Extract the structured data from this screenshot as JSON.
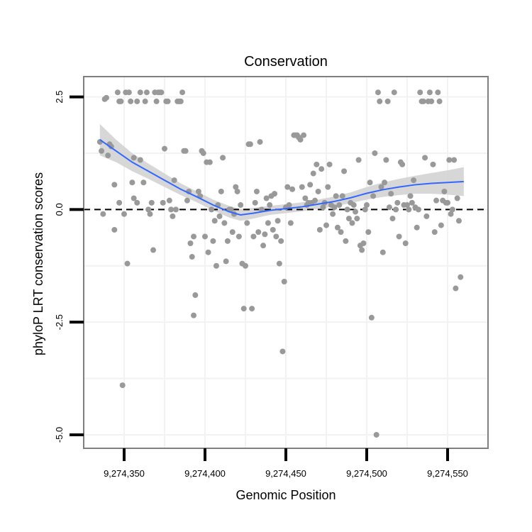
{
  "chart_data": {
    "type": "scatter",
    "title": "Conservation",
    "xlabel": "Genomic Position",
    "ylabel": "phyloP LRT conservation scores",
    "xlim": [
      9274325,
      9274575
    ],
    "ylim": [
      -5.3,
      2.95
    ],
    "x_ticks": [
      9274350,
      9274400,
      9274450,
      9274500,
      9274550
    ],
    "x_tick_labels": [
      "9,274,350",
      "9,274,400",
      "9,274,450",
      "9,274,500",
      "9,274,550"
    ],
    "y_ticks": [
      2.5,
      0.0,
      -2.5,
      -5.0
    ],
    "y_tick_labels": [
      "2.5",
      "0.0",
      "-2.5",
      "-5.0"
    ],
    "reference_line": {
      "y": 0,
      "style": "dashed"
    },
    "colors": {
      "points": "#999999",
      "smooth": "#3366ff",
      "ribbon": "#d3d3d3",
      "grid": "#f2f2f2",
      "border": "#7f7f7f"
    },
    "series": [
      {
        "name": "scores",
        "points": [
          [
            9274335,
            1.5
          ],
          [
            9274336,
            1.3
          ],
          [
            9274337,
            -0.1
          ],
          [
            9274338,
            2.45
          ],
          [
            9274339,
            2.48
          ],
          [
            9274340,
            1.2
          ],
          [
            9274341,
            1.45
          ],
          [
            9274342,
            1.4
          ],
          [
            9274344,
            0.55
          ],
          [
            9274344,
            -0.45
          ],
          [
            9274346,
            2.6
          ],
          [
            9274347,
            2.4
          ],
          [
            9274347,
            0.15
          ],
          [
            9274348,
            2.4
          ],
          [
            9274349,
            -3.9
          ],
          [
            9274350,
            -0.1
          ],
          [
            9274351,
            2.6
          ],
          [
            9274352,
            -1.2
          ],
          [
            9274353,
            2.6
          ],
          [
            9274354,
            2.4
          ],
          [
            9274355,
            0.6
          ],
          [
            9274356,
            1.15
          ],
          [
            9274356,
            0.25
          ],
          [
            9274358,
            2.4
          ],
          [
            9274358,
            0.15
          ],
          [
            9274360,
            1.1
          ],
          [
            9274360,
            2.6
          ],
          [
            9274362,
            0.6
          ],
          [
            9274363,
            2.4
          ],
          [
            9274364,
            2.6
          ],
          [
            9274365,
            0.0
          ],
          [
            9274366,
            -0.1
          ],
          [
            9274367,
            0.15
          ],
          [
            9274368,
            -0.9
          ],
          [
            9274369,
            2.6
          ],
          [
            9274370,
            2.4
          ],
          [
            9274371,
            2.6
          ],
          [
            9274372,
            2.6
          ],
          [
            9274373,
            2.6
          ],
          [
            9274374,
            0.15
          ],
          [
            9274375,
            1.35
          ],
          [
            9274376,
            2.4
          ],
          [
            9274377,
            2.4
          ],
          [
            9274378,
            0.2
          ],
          [
            9274379,
            0.0
          ],
          [
            9274380,
            -0.15
          ],
          [
            9274381,
            0.65
          ],
          [
            9274382,
            0.0
          ],
          [
            9274383,
            2.4
          ],
          [
            9274384,
            2.4
          ],
          [
            9274385,
            2.4
          ],
          [
            9274386,
            2.6
          ],
          [
            9274387,
            1.3
          ],
          [
            9274388,
            1.3
          ],
          [
            9274389,
            0.2
          ],
          [
            9274390,
            0.4
          ],
          [
            9274391,
            -0.75
          ],
          [
            9274392,
            -1.05
          ],
          [
            9274393,
            -0.6
          ],
          [
            9274394,
            -1.9
          ],
          [
            9274393,
            -2.35
          ],
          [
            9274396,
            0.4
          ],
          [
            9274397,
            0.3
          ],
          [
            9274398,
            1.3
          ],
          [
            9274399,
            1.25
          ],
          [
            9274400,
            -0.6
          ],
          [
            9274401,
            1.05
          ],
          [
            9274402,
            -0.95
          ],
          [
            9274403,
            1.05
          ],
          [
            9274404,
            0.0
          ],
          [
            9274405,
            -0.7
          ],
          [
            9274406,
            -0.25
          ],
          [
            9274407,
            -1.25
          ],
          [
            9274408,
            0.1
          ],
          [
            9274409,
            -0.15
          ],
          [
            9274410,
            0.4
          ],
          [
            9274411,
            1.15
          ],
          [
            9274412,
            -0.3
          ],
          [
            9274413,
            -1.15
          ],
          [
            9274414,
            -0.7
          ],
          [
            9274415,
            0.0
          ],
          [
            9274416,
            0.0
          ],
          [
            9274417,
            -0.5
          ],
          [
            9274418,
            -0.1
          ],
          [
            9274419,
            0.5
          ],
          [
            9274420,
            0.4
          ],
          [
            9274421,
            -0.6
          ],
          [
            9274422,
            0.1
          ],
          [
            9274423,
            -1.2
          ],
          [
            9274424,
            -2.2
          ],
          [
            9274425,
            -1.25
          ],
          [
            9274426,
            -0.3
          ],
          [
            9274427,
            1.45
          ],
          [
            9274428,
            1.45
          ],
          [
            9274429,
            -2.2
          ],
          [
            9274430,
            -0.6
          ],
          [
            9274431,
            0.15
          ],
          [
            9274432,
            0.4
          ],
          [
            9274433,
            -0.5
          ],
          [
            9274434,
            1.5
          ],
          [
            9274435,
            0.0
          ],
          [
            9274436,
            -0.8
          ],
          [
            9274437,
            -0.55
          ],
          [
            9274438,
            0.25
          ],
          [
            9274439,
            -0.3
          ],
          [
            9274440,
            0.1
          ],
          [
            9274441,
            0.3
          ],
          [
            9274442,
            -0.45
          ],
          [
            9274443,
            0.35
          ],
          [
            9274444,
            -0.6
          ],
          [
            9274445,
            -0.25
          ],
          [
            9274446,
            -1.2
          ],
          [
            9274447,
            -0.7
          ],
          [
            9274448,
            -3.15
          ],
          [
            9274449,
            -1.6
          ],
          [
            9274450,
            0.05
          ],
          [
            9274451,
            0.5
          ],
          [
            9274452,
            0.1
          ],
          [
            9274453,
            -0.3
          ],
          [
            9274454,
            0.45
          ],
          [
            9274455,
            1.65
          ],
          [
            9274456,
            1.65
          ],
          [
            9274457,
            1.65
          ],
          [
            9274458,
            1.6
          ],
          [
            9274459,
            1.55
          ],
          [
            9274460,
            0.5
          ],
          [
            9274461,
            1.65
          ],
          [
            9274462,
            0.25
          ],
          [
            9274463,
            0.1
          ],
          [
            9274464,
            0.15
          ],
          [
            9274465,
            0.55
          ],
          [
            9274466,
            0.15
          ],
          [
            9274467,
            0.8
          ],
          [
            9274468,
            0.2
          ],
          [
            9274469,
            1.0
          ],
          [
            9274470,
            0.4
          ],
          [
            9274471,
            -0.45
          ],
          [
            9274472,
            0.9
          ],
          [
            9274473,
            0.05
          ],
          [
            9274474,
            0.15
          ],
          [
            9274475,
            -0.35
          ],
          [
            9274476,
            0.5
          ],
          [
            9274477,
            1.0
          ],
          [
            9274478,
            0.1
          ],
          [
            9274479,
            -0.1
          ],
          [
            9274480,
            0.05
          ],
          [
            9274481,
            0.3
          ],
          [
            9274482,
            -0.4
          ],
          [
            9274483,
            0.1
          ],
          [
            9274484,
            -0.5
          ],
          [
            9274485,
            0.3
          ],
          [
            9274486,
            0.85
          ],
          [
            9274487,
            -0.7
          ],
          [
            9274488,
            0.0
          ],
          [
            9274489,
            -0.2
          ],
          [
            9274490,
            0.15
          ],
          [
            9274491,
            -0.3
          ],
          [
            9274492,
            0.1
          ],
          [
            9274493,
            -0.05
          ],
          [
            9274494,
            -0.2
          ],
          [
            9274495,
            1.1
          ],
          [
            9274496,
            -0.8
          ],
          [
            9274497,
            -0.9
          ],
          [
            9274498,
            -0.75
          ],
          [
            9274499,
            0.0
          ],
          [
            9274500,
            0.1
          ],
          [
            9274501,
            -0.5
          ],
          [
            9274502,
            0.6
          ],
          [
            9274503,
            -2.4
          ],
          [
            9274504,
            0.3
          ],
          [
            9274505,
            1.25
          ],
          [
            9274506,
            -5.0
          ],
          [
            9274507,
            2.6
          ],
          [
            9274508,
            2.4
          ],
          [
            9274509,
            0.5
          ],
          [
            9274510,
            -0.95
          ],
          [
            9274511,
            0.6
          ],
          [
            9274512,
            1.1
          ],
          [
            9274513,
            2.4
          ],
          [
            9274514,
            0.05
          ],
          [
            9274515,
            0.35
          ],
          [
            9274516,
            -0.2
          ],
          [
            9274517,
            2.6
          ],
          [
            9274518,
            0.0
          ],
          [
            9274519,
            0.15
          ],
          [
            9274520,
            -0.6
          ],
          [
            9274521,
            1.05
          ],
          [
            9274522,
            1.0
          ],
          [
            9274523,
            0.1
          ],
          [
            9274524,
            -0.75
          ],
          [
            9274525,
            0.1
          ],
          [
            9274526,
            0.0
          ],
          [
            9274527,
            0.3
          ],
          [
            9274528,
            0.15
          ],
          [
            9274529,
            0.65
          ],
          [
            9274530,
            0.05
          ],
          [
            9274531,
            -0.4
          ],
          [
            9274532,
            0.0
          ],
          [
            9274533,
            2.6
          ],
          [
            9274534,
            2.4
          ],
          [
            9274535,
            2.4
          ],
          [
            9274536,
            1.15
          ],
          [
            9274537,
            -0.15
          ],
          [
            9274538,
            2.4
          ],
          [
            9274539,
            2.6
          ],
          [
            9274540,
            2.4
          ],
          [
            9274541,
            1.0
          ],
          [
            9274542,
            -0.5
          ],
          [
            9274543,
            0.2
          ],
          [
            9274544,
            2.6
          ],
          [
            9274545,
            2.4
          ],
          [
            9274546,
            -0.35
          ],
          [
            9274547,
            0.2
          ],
          [
            9274548,
            0.4
          ],
          [
            9274549,
            0.15
          ],
          [
            9274550,
            0.15
          ],
          [
            9274551,
            1.1
          ],
          [
            9274552,
            -0.1
          ],
          [
            9274553,
            0.0
          ],
          [
            9274554,
            1.1
          ],
          [
            9274555,
            -1.75
          ],
          [
            9274556,
            0.25
          ],
          [
            9274557,
            -0.25
          ],
          [
            9274558,
            -1.5
          ]
        ]
      }
    ],
    "smooth": {
      "x": [
        9274335,
        9274345,
        9274355,
        9274365,
        9274375,
        9274385,
        9274395,
        9274405,
        9274415,
        9274422,
        9274430,
        9274440,
        9274450,
        9274460,
        9274470,
        9274480,
        9274490,
        9274500,
        9274510,
        9274520,
        9274530,
        9274540,
        9274550,
        9274560
      ],
      "y": [
        1.55,
        1.3,
        1.05,
        0.85,
        0.65,
        0.45,
        0.28,
        0.1,
        -0.05,
        -0.12,
        -0.08,
        -0.02,
        0.02,
        0.06,
        0.12,
        0.18,
        0.26,
        0.36,
        0.44,
        0.5,
        0.55,
        0.58,
        0.6,
        0.62
      ],
      "lower": [
        1.2,
        1.05,
        0.85,
        0.68,
        0.5,
        0.32,
        0.16,
        -0.02,
        -0.18,
        -0.25,
        -0.2,
        -0.12,
        -0.08,
        -0.04,
        0.02,
        0.07,
        0.14,
        0.22,
        0.28,
        0.32,
        0.35,
        0.35,
        0.33,
        0.3
      ],
      "upper": [
        1.9,
        1.55,
        1.25,
        1.02,
        0.8,
        0.58,
        0.4,
        0.22,
        0.08,
        0.01,
        0.04,
        0.08,
        0.12,
        0.16,
        0.22,
        0.29,
        0.38,
        0.5,
        0.6,
        0.68,
        0.75,
        0.81,
        0.87,
        0.94
      ]
    }
  }
}
